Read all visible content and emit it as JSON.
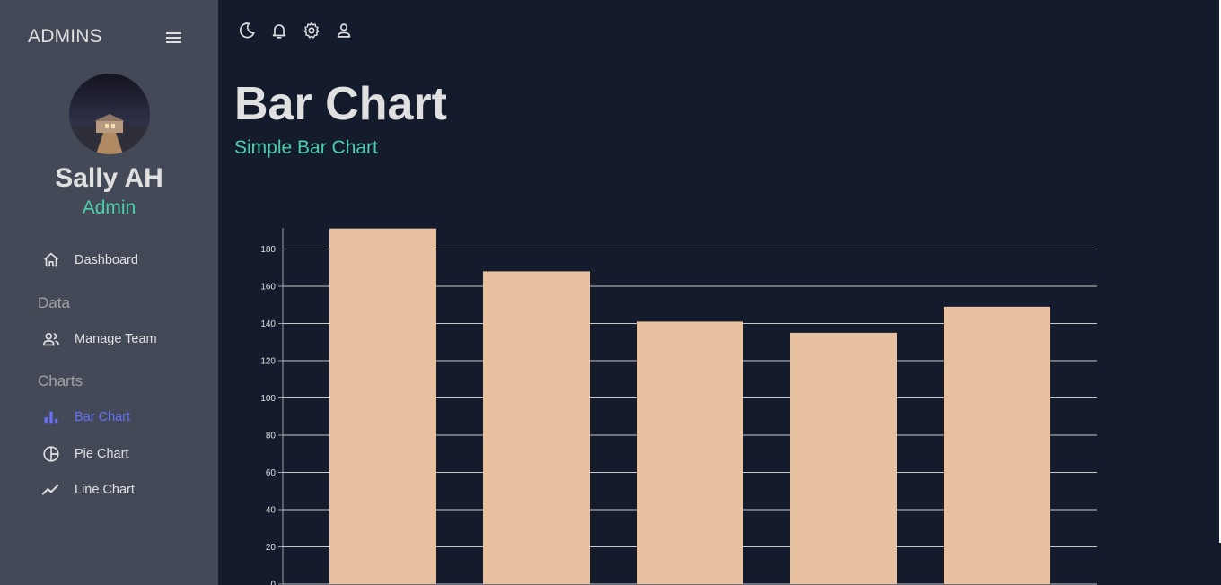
{
  "sidebar": {
    "brand": "ADMINS",
    "user": {
      "name": "Sally AH",
      "role": "Admin"
    },
    "items": [
      {
        "label": "Dashboard",
        "icon": "home-icon"
      },
      {
        "label": "Manage Team",
        "icon": "people-icon"
      },
      {
        "label": "Bar Chart",
        "icon": "bar-chart-icon",
        "active": true
      },
      {
        "label": "Pie Chart",
        "icon": "pie-chart-icon"
      },
      {
        "label": "Line Chart",
        "icon": "line-chart-icon"
      }
    ],
    "sections": [
      "Data",
      "Charts"
    ]
  },
  "topbar": {
    "icons": [
      "moon-icon",
      "bell-icon",
      "gear-icon",
      "person-icon"
    ]
  },
  "header": {
    "title": "Bar Chart",
    "subtitle": "Simple Bar Chart"
  },
  "colors": {
    "accent_green": "#4cceac",
    "accent_blue": "#6870fa",
    "bar": "#e8c1a0",
    "background": "#141b2d",
    "sidebar": "#434957"
  },
  "chart_data": {
    "type": "bar",
    "values": [
      191,
      168,
      141,
      135,
      149
    ],
    "ylim": [
      0,
      190
    ],
    "yticks": [
      0,
      20,
      40,
      60,
      80,
      100,
      120,
      140,
      160,
      180
    ],
    "grid": true
  }
}
